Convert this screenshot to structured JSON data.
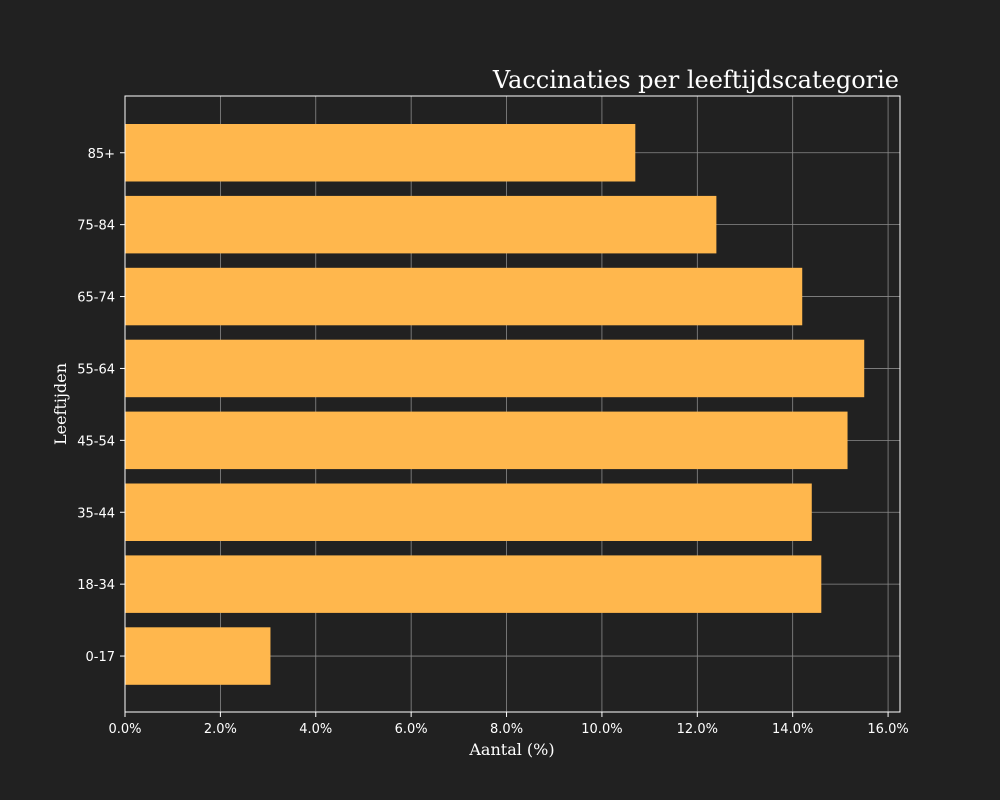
{
  "chart_data": {
    "type": "bar",
    "orientation": "horizontal",
    "title": "Vaccinaties per leeftijdscategorie",
    "xlabel": "Aantal (%)",
    "ylabel": "Leeftijden",
    "categories": [
      "0-17",
      "18-34",
      "35-44",
      "45-54",
      "55-64",
      "65-74",
      "75-84",
      "85+"
    ],
    "values": [
      3.05,
      14.6,
      14.4,
      15.15,
      15.5,
      14.2,
      12.4,
      10.7
    ],
    "xlim": [
      0,
      16.25
    ],
    "xticks": [
      0,
      2,
      4,
      6,
      8,
      10,
      12,
      14,
      16
    ],
    "xtick_labels": [
      "0.0%",
      "2.0%",
      "4.0%",
      "6.0%",
      "8.0%",
      "10.0%",
      "12.0%",
      "14.0%",
      "16.0%"
    ],
    "grid": true,
    "colors": {
      "background": "#212121",
      "bar": "#ffb74d",
      "grid": "#8a8a8a",
      "axis": "#ffffff",
      "text": "#ffffff"
    }
  }
}
